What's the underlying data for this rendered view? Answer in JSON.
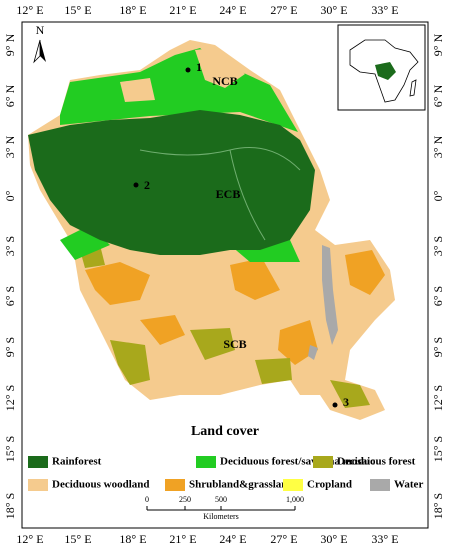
{
  "frame": {
    "top_labels": [
      "12° E",
      "15° E",
      "18° E",
      "21° E",
      "24° E",
      "27° E",
      "30° E",
      "33° E"
    ],
    "bottom_labels": [
      "12° E",
      "15° E",
      "18° E",
      "21° E",
      "24° E",
      "27° E",
      "30° E",
      "33° E"
    ],
    "left_labels": [
      "9° N",
      "6° N",
      "3° N",
      "0°",
      "3° S",
      "6° S",
      "9° S",
      "12° S",
      "15° S",
      "18° S"
    ],
    "right_labels": [
      "9° N",
      "6° N",
      "3° N",
      "0°",
      "3° S",
      "6° S",
      "9° S",
      "12° S",
      "15° S",
      "18° S"
    ]
  },
  "north_arrow": "N",
  "regions": [
    "NCB",
    "ECB",
    "SCB"
  ],
  "sites": [
    "1",
    "2",
    "3"
  ],
  "title": "Land cover",
  "legend": [
    {
      "label": "Rainforest",
      "color": "#1b6b1b"
    },
    {
      "label": "Deciduous forest/savanna mosaic",
      "color": "#22cc22"
    },
    {
      "label": "Deciduous forest",
      "color": "#a8a81c"
    },
    {
      "label": "Deciduous woodland",
      "color": "#f5cb8e"
    },
    {
      "label": "Shrubland&grassland",
      "color": "#f0a224"
    },
    {
      "label": "Cropland",
      "color": "#ffff44"
    },
    {
      "label": "Water",
      "color": "#a9a9a9"
    }
  ],
  "scale_bar": {
    "labels": [
      "0",
      "250",
      "500",
      "1,000"
    ],
    "unit": "Kilometers"
  }
}
